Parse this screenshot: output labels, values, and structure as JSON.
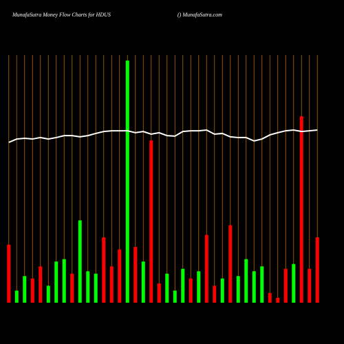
{
  "chart_data": {
    "type": "bar",
    "title": "MunafaSutra  Money Flow  Charts for HDUS",
    "subtitle": "() MunafaSutra.com",
    "categories": [
      null,
      null,
      null,
      null,
      null,
      null,
      null,
      null,
      null,
      null,
      null,
      null,
      null,
      null,
      null,
      null,
      null,
      null,
      null,
      null,
      null,
      null,
      null,
      null,
      null,
      null,
      null,
      null,
      null,
      null,
      null,
      null,
      null,
      null,
      null,
      null,
      null,
      null,
      null,
      null
    ],
    "values": [
      24,
      5,
      11,
      10,
      15,
      7,
      17,
      18,
      12,
      34,
      13,
      12,
      27,
      15,
      22,
      100,
      23,
      17,
      67,
      8,
      12,
      5,
      14,
      10,
      13,
      28,
      7,
      10,
      32,
      11,
      18,
      13,
      15,
      4,
      2,
      14,
      16,
      77,
      14,
      27
    ],
    "colors": [
      "#ff0000",
      "#00ff00",
      "#00ff00",
      "#ff0000",
      "#ff0000",
      "#00ff00",
      "#00ff00",
      "#00ff00",
      "#ff0000",
      "#00ff00",
      "#00ff00",
      "#00ff00",
      "#ff0000",
      "#ff0000",
      "#ff0000",
      "#00ff00",
      "#ff0000",
      "#00ff00",
      "#ff0000",
      "#ff0000",
      "#00ff00",
      "#00ff00",
      "#00ff00",
      "#ff0000",
      "#00ff00",
      "#ff0000",
      "#ff0000",
      "#00ff00",
      "#ff0000",
      "#00ff00",
      "#00ff00",
      "#00ff00",
      "#00ff00",
      "#ff0000",
      "#ff0000",
      "#ff0000",
      "#00ff00",
      "#ff0000",
      "#ff0000",
      "#ff0000"
    ],
    "line": {
      "color": "#ffffff",
      "values": [
        66.2,
        67.6,
        67.9,
        67.6,
        68.2,
        67.6,
        68.2,
        69,
        69,
        68.5,
        69,
        69.9,
        70.7,
        71,
        71,
        71,
        70.2,
        70.7,
        69.6,
        70.2,
        69,
        68.8,
        70.7,
        71,
        71,
        71.3,
        69.6,
        69.9,
        68.5,
        68.2,
        68.2,
        66.8,
        67.6,
        69.3,
        70.2,
        71,
        71.3,
        70.7,
        71,
        71.3
      ]
    },
    "ylim": [
      0,
      100
    ],
    "grid": true,
    "grid_color": "#b86a00"
  }
}
